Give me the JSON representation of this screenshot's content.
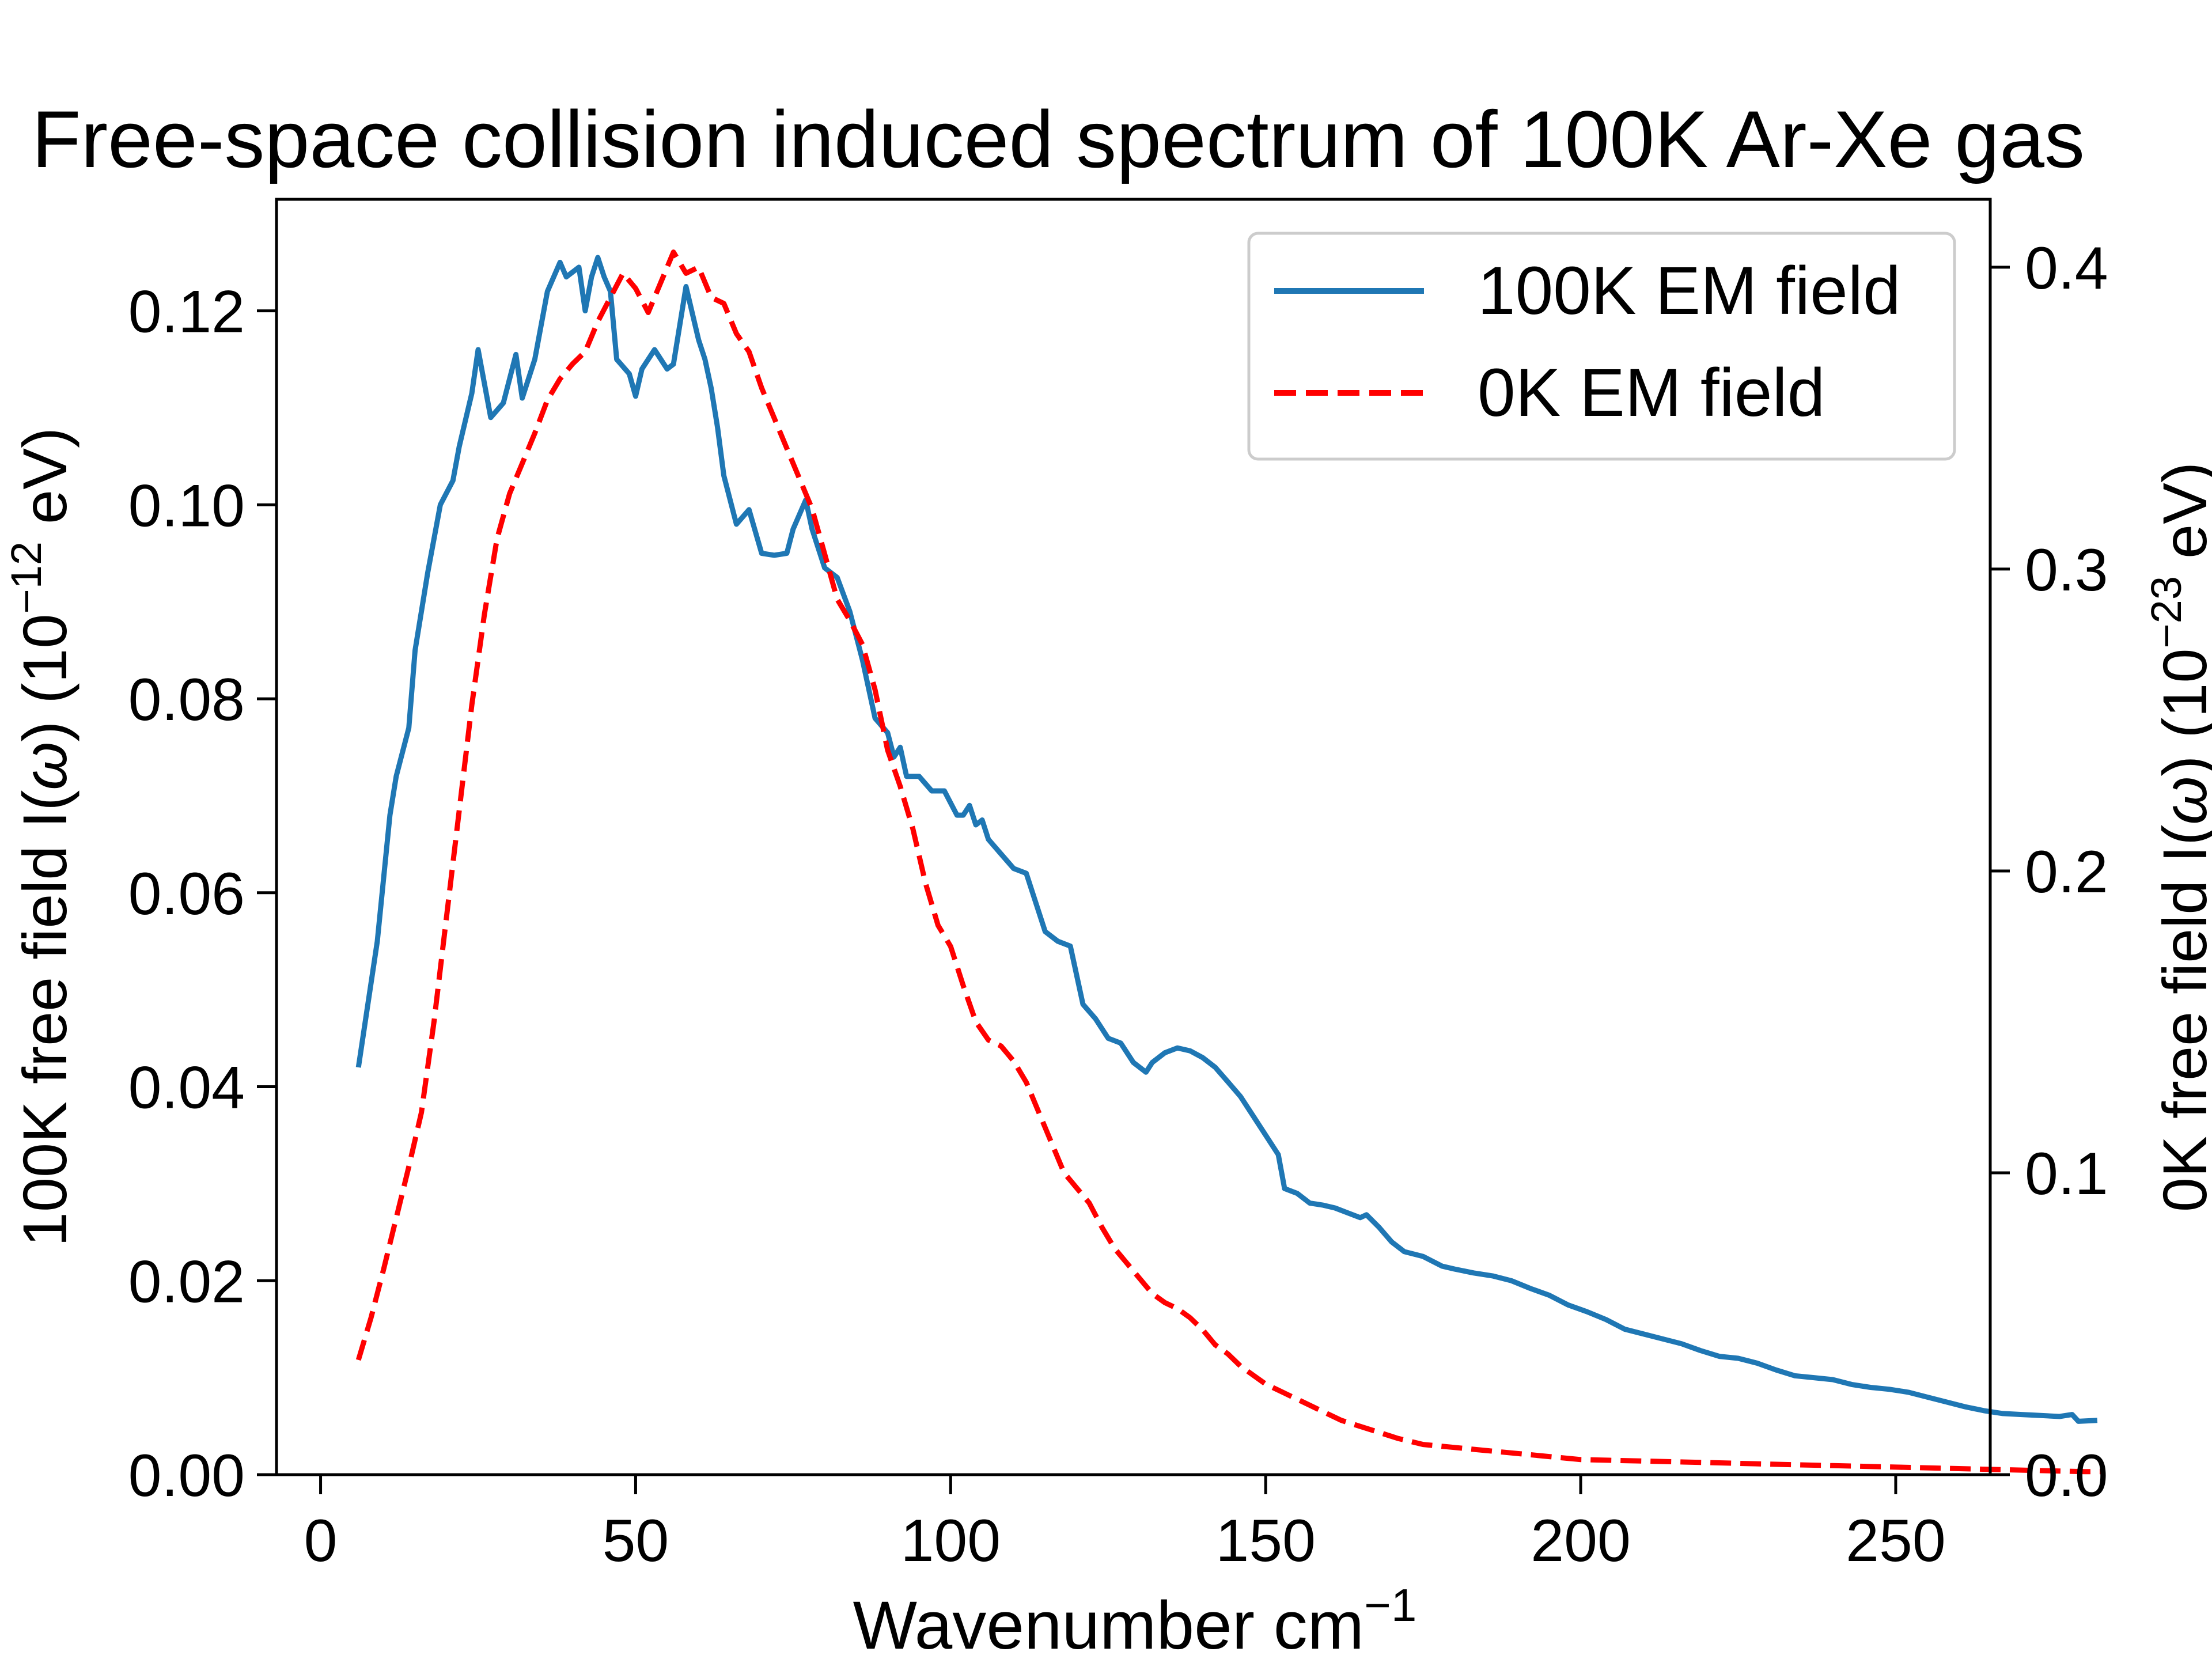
{
  "chart_data": {
    "type": "line",
    "title": "Free-space collision induced spectrum of 100K Ar-Xe gas",
    "xlabel": "Wavenumber cm",
    "xlabel_sup": "−1",
    "ylabel_left": {
      "pre": "100K free field I(",
      "sym": "ω",
      "post": ") (10",
      "sup": "−12",
      "tail": " eV)"
    },
    "ylabel_right": {
      "pre": "0K free field I(",
      "sym": "ω",
      "post": ") (10",
      "sup": "−23",
      "tail": " eV)"
    },
    "xlim": [
      -7,
      265
    ],
    "ylim_left": [
      0,
      0.1315
    ],
    "ylim_right": [
      0,
      0.4225
    ],
    "xticks": [
      0,
      50,
      100,
      150,
      200,
      250
    ],
    "yticks_left": [
      0.0,
      0.02,
      0.04,
      0.06,
      0.08,
      0.1,
      0.12
    ],
    "yticks_right": [
      0.0,
      0.1,
      0.2,
      0.3,
      0.4
    ],
    "legend_position": "top-right",
    "grid": false,
    "series": [
      {
        "name": "100K EM field",
        "axis": "left",
        "color": "#1f77b4",
        "style": "solid",
        "points": [
          [
            6,
            0.042
          ],
          [
            9,
            0.055
          ],
          [
            11,
            0.068
          ],
          [
            12,
            0.072
          ],
          [
            14,
            0.077
          ],
          [
            15,
            0.085
          ],
          [
            17,
            0.093
          ],
          [
            19,
            0.1
          ],
          [
            21,
            0.1025
          ],
          [
            22,
            0.106
          ],
          [
            24,
            0.1115
          ],
          [
            25,
            0.116
          ],
          [
            27,
            0.109
          ],
          [
            29,
            0.1105
          ],
          [
            31,
            0.1155
          ],
          [
            32,
            0.111
          ],
          [
            34,
            0.115
          ],
          [
            36,
            0.122
          ],
          [
            38,
            0.125
          ],
          [
            39,
            0.1235
          ],
          [
            41,
            0.1245
          ],
          [
            42,
            0.12
          ],
          [
            43,
            0.1235
          ],
          [
            44,
            0.1255
          ],
          [
            45,
            0.1235
          ],
          [
            46,
            0.122
          ],
          [
            47,
            0.115
          ],
          [
            49,
            0.1135
          ],
          [
            50,
            0.1112
          ],
          [
            51,
            0.114
          ],
          [
            53,
            0.116
          ],
          [
            55,
            0.114
          ],
          [
            56,
            0.1145
          ],
          [
            57,
            0.1185
          ],
          [
            58,
            0.1225
          ],
          [
            60,
            0.117
          ],
          [
            61,
            0.115
          ],
          [
            62,
            0.112
          ],
          [
            63,
            0.108
          ],
          [
            64,
            0.103
          ],
          [
            66,
            0.098
          ],
          [
            68,
            0.0995
          ],
          [
            70,
            0.095
          ],
          [
            72,
            0.0948
          ],
          [
            74,
            0.095
          ],
          [
            75,
            0.0975
          ],
          [
            77,
            0.1005
          ],
          [
            78,
            0.0975
          ],
          [
            80,
            0.0935
          ],
          [
            82,
            0.0925
          ],
          [
            84,
            0.089
          ],
          [
            86,
            0.084
          ],
          [
            88,
            0.078
          ],
          [
            90,
            0.0765
          ],
          [
            91,
            0.074
          ],
          [
            92,
            0.075
          ],
          [
            93,
            0.072
          ],
          [
            95,
            0.072
          ],
          [
            97,
            0.0705
          ],
          [
            99,
            0.0705
          ],
          [
            101,
            0.068
          ],
          [
            102,
            0.068
          ],
          [
            103,
            0.069
          ],
          [
            104,
            0.067
          ],
          [
            105,
            0.0675
          ],
          [
            106,
            0.0655
          ],
          [
            108,
            0.064
          ],
          [
            110,
            0.0625
          ],
          [
            112,
            0.062
          ],
          [
            113,
            0.06
          ],
          [
            115,
            0.056
          ],
          [
            117,
            0.055
          ],
          [
            119,
            0.0545
          ],
          [
            121,
            0.0485
          ],
          [
            123,
            0.047
          ],
          [
            125,
            0.045
          ],
          [
            127,
            0.0445
          ],
          [
            129,
            0.0425
          ],
          [
            131,
            0.0415
          ],
          [
            132,
            0.0425
          ],
          [
            134,
            0.0435
          ],
          [
            136,
            0.044
          ],
          [
            138,
            0.0437
          ],
          [
            140,
            0.043
          ],
          [
            142,
            0.042
          ],
          [
            144,
            0.0405
          ],
          [
            146,
            0.039
          ],
          [
            148,
            0.037
          ],
          [
            150,
            0.035
          ],
          [
            152,
            0.033
          ],
          [
            153,
            0.0295
          ],
          [
            155,
            0.029
          ],
          [
            157,
            0.028
          ],
          [
            159,
            0.0278
          ],
          [
            161,
            0.0275
          ],
          [
            163,
            0.027
          ],
          [
            165,
            0.0265
          ],
          [
            166,
            0.0268
          ],
          [
            168,
            0.0255
          ],
          [
            170,
            0.024
          ],
          [
            172,
            0.023
          ],
          [
            175,
            0.0225
          ],
          [
            178,
            0.0215
          ],
          [
            180,
            0.0212
          ],
          [
            183,
            0.0208
          ],
          [
            186,
            0.0205
          ],
          [
            189,
            0.02
          ],
          [
            192,
            0.0192
          ],
          [
            195,
            0.0185
          ],
          [
            198,
            0.0175
          ],
          [
            201,
            0.0168
          ],
          [
            204,
            0.016
          ],
          [
            207,
            0.015
          ],
          [
            210,
            0.0145
          ],
          [
            213,
            0.014
          ],
          [
            216,
            0.0135
          ],
          [
            219,
            0.0128
          ],
          [
            222,
            0.0122
          ],
          [
            225,
            0.012
          ],
          [
            228,
            0.0115
          ],
          [
            231,
            0.0108
          ],
          [
            234,
            0.0102
          ],
          [
            237,
            0.01
          ],
          [
            240,
            0.0098
          ],
          [
            243,
            0.0093
          ],
          [
            246,
            0.009
          ],
          [
            249,
            0.0088
          ],
          [
            252,
            0.0085
          ],
          [
            255,
            0.008
          ],
          [
            258,
            0.0075
          ],
          [
            261,
            0.007
          ],
          [
            264,
            0.0066
          ],
          [
            267,
            0.0063
          ],
          [
            270,
            0.0062
          ],
          [
            273,
            0.0061
          ],
          [
            276,
            0.006
          ],
          [
            278,
            0.0062
          ],
          [
            279,
            0.0055
          ],
          [
            282,
            0.0056
          ]
        ]
      },
      {
        "name": "0K EM field",
        "axis": "right",
        "color": "#ff0000",
        "style": "dashed",
        "points": [
          [
            6,
            0.038
          ],
          [
            8,
            0.052
          ],
          [
            10,
            0.068
          ],
          [
            12,
            0.085
          ],
          [
            14,
            0.102
          ],
          [
            16,
            0.12
          ],
          [
            18,
            0.15
          ],
          [
            20,
            0.185
          ],
          [
            22,
            0.22
          ],
          [
            24,
            0.255
          ],
          [
            26,
            0.285
          ],
          [
            28,
            0.31
          ],
          [
            30,
            0.325
          ],
          [
            32,
            0.335
          ],
          [
            34,
            0.345
          ],
          [
            36,
            0.356
          ],
          [
            38,
            0.363
          ],
          [
            40,
            0.368
          ],
          [
            42,
            0.372
          ],
          [
            44,
            0.382
          ],
          [
            46,
            0.39
          ],
          [
            48,
            0.398
          ],
          [
            50,
            0.393
          ],
          [
            52,
            0.385
          ],
          [
            54,
            0.395
          ],
          [
            56,
            0.405
          ],
          [
            58,
            0.398
          ],
          [
            60,
            0.4
          ],
          [
            62,
            0.39
          ],
          [
            64,
            0.388
          ],
          [
            66,
            0.378
          ],
          [
            68,
            0.372
          ],
          [
            70,
            0.36
          ],
          [
            72,
            0.35
          ],
          [
            74,
            0.34
          ],
          [
            76,
            0.33
          ],
          [
            78,
            0.32
          ],
          [
            80,
            0.305
          ],
          [
            82,
            0.29
          ],
          [
            84,
            0.283
          ],
          [
            86,
            0.275
          ],
          [
            88,
            0.26
          ],
          [
            90,
            0.24
          ],
          [
            92,
            0.228
          ],
          [
            94,
            0.214
          ],
          [
            96,
            0.196
          ],
          [
            98,
            0.182
          ],
          [
            100,
            0.175
          ],
          [
            102,
            0.162
          ],
          [
            104,
            0.15
          ],
          [
            106,
            0.144
          ],
          [
            108,
            0.142
          ],
          [
            110,
            0.137
          ],
          [
            112,
            0.13
          ],
          [
            114,
            0.12
          ],
          [
            116,
            0.11
          ],
          [
            118,
            0.1
          ],
          [
            120,
            0.095
          ],
          [
            122,
            0.09
          ],
          [
            124,
            0.082
          ],
          [
            126,
            0.075
          ],
          [
            128,
            0.07
          ],
          [
            130,
            0.065
          ],
          [
            132,
            0.06
          ],
          [
            134,
            0.057
          ],
          [
            136,
            0.055
          ],
          [
            138,
            0.052
          ],
          [
            140,
            0.048
          ],
          [
            142,
            0.043
          ],
          [
            144,
            0.04
          ],
          [
            146,
            0.036
          ],
          [
            148,
            0.033
          ],
          [
            150,
            0.03
          ],
          [
            153,
            0.027
          ],
          [
            156,
            0.024
          ],
          [
            159,
            0.021
          ],
          [
            162,
            0.018
          ],
          [
            165,
            0.016
          ],
          [
            168,
            0.014
          ],
          [
            171,
            0.012
          ],
          [
            175,
            0.01
          ],
          [
            180,
            0.009
          ],
          [
            185,
            0.008
          ],
          [
            190,
            0.007
          ],
          [
            195,
            0.006
          ],
          [
            200,
            0.005
          ],
          [
            210,
            0.0045
          ],
          [
            220,
            0.004
          ],
          [
            230,
            0.0035
          ],
          [
            240,
            0.003
          ],
          [
            250,
            0.0025
          ],
          [
            260,
            0.002
          ],
          [
            270,
            0.0015
          ],
          [
            280,
            0.001
          ],
          [
            283,
            0.001
          ]
        ]
      }
    ]
  }
}
